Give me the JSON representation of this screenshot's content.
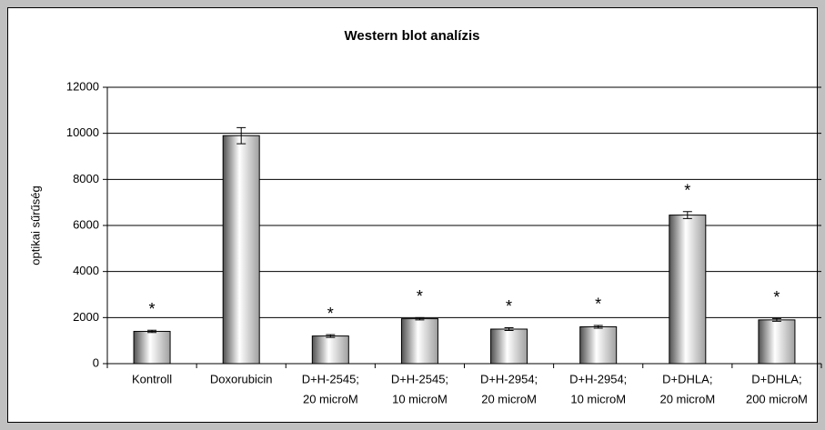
{
  "chart_data": {
    "type": "bar",
    "title": "Western blot analízis",
    "y_label": "optikai sűrűség",
    "categories": [
      [
        "Kontroll"
      ],
      [
        "Doxorubicin"
      ],
      [
        "D+H-2545;",
        "20 microM"
      ],
      [
        "D+H-2545;",
        "10 microM"
      ],
      [
        "D+H-2954;",
        "20 microM"
      ],
      [
        "D+H-2954;",
        "10 microM"
      ],
      [
        "D+DHLA;",
        "20 microM"
      ],
      [
        "D+DHLA;",
        "200 microM"
      ]
    ],
    "values": [
      1400,
      9900,
      1200,
      1950,
      1500,
      1600,
      6450,
      1900
    ],
    "errors": [
      50,
      350,
      60,
      50,
      60,
      60,
      150,
      60
    ],
    "annotations": [
      "*",
      null,
      "*",
      "*",
      "*",
      "*",
      "*",
      "*"
    ],
    "color": "#a0a0a0",
    "ylim": [
      0,
      12000
    ],
    "yticks": [
      0,
      2000,
      4000,
      6000,
      8000,
      10000,
      12000
    ],
    "grid": true
  }
}
